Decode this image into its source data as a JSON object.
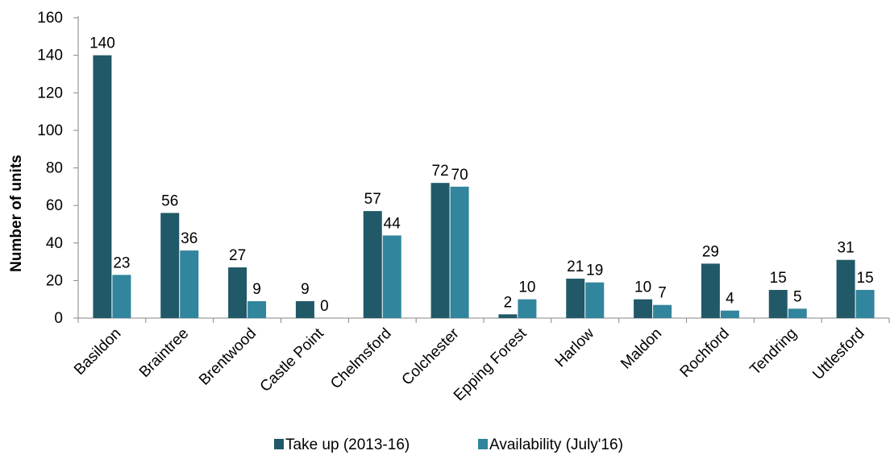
{
  "chart_data": {
    "type": "bar",
    "title": "",
    "xlabel": "",
    "ylabel": "Number of units",
    "ylim": [
      0,
      160
    ],
    "yticks": [
      0,
      20,
      40,
      60,
      80,
      100,
      120,
      140,
      160
    ],
    "grid": false,
    "legend_position": "bottom",
    "categories": [
      "Basildon",
      "Braintree",
      "Brentwood",
      "Castle Point",
      "Chelmsford",
      "Colchester",
      "Epping Forest",
      "Harlow",
      "Maldon",
      "Rochford",
      "Tendring",
      "Uttlesford"
    ],
    "series": [
      {
        "name": "Take up (2013-16)",
        "color": "#215968",
        "values": [
          140,
          56,
          27,
          9,
          57,
          72,
          2,
          21,
          10,
          29,
          15,
          31
        ]
      },
      {
        "name": "Availability (July'16)",
        "color": "#31859C",
        "values": [
          23,
          36,
          9,
          0,
          44,
          70,
          10,
          19,
          7,
          4,
          5,
          15
        ]
      }
    ]
  }
}
